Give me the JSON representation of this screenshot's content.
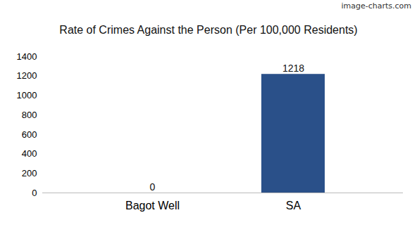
{
  "chart_data": {
    "type": "bar",
    "title": "Rate of Crimes Against the Person (Per 100,000 Residents)",
    "annotation": "image-charts.com",
    "categories": [
      "Bagot Well",
      "SA"
    ],
    "values": [
      0,
      1218
    ],
    "color": "#2a5089",
    "ylim": [
      0,
      1400
    ],
    "yticks": [
      0,
      200,
      400,
      600,
      800,
      1000,
      1200,
      1400
    ],
    "grid": false,
    "data_labels": true
  }
}
